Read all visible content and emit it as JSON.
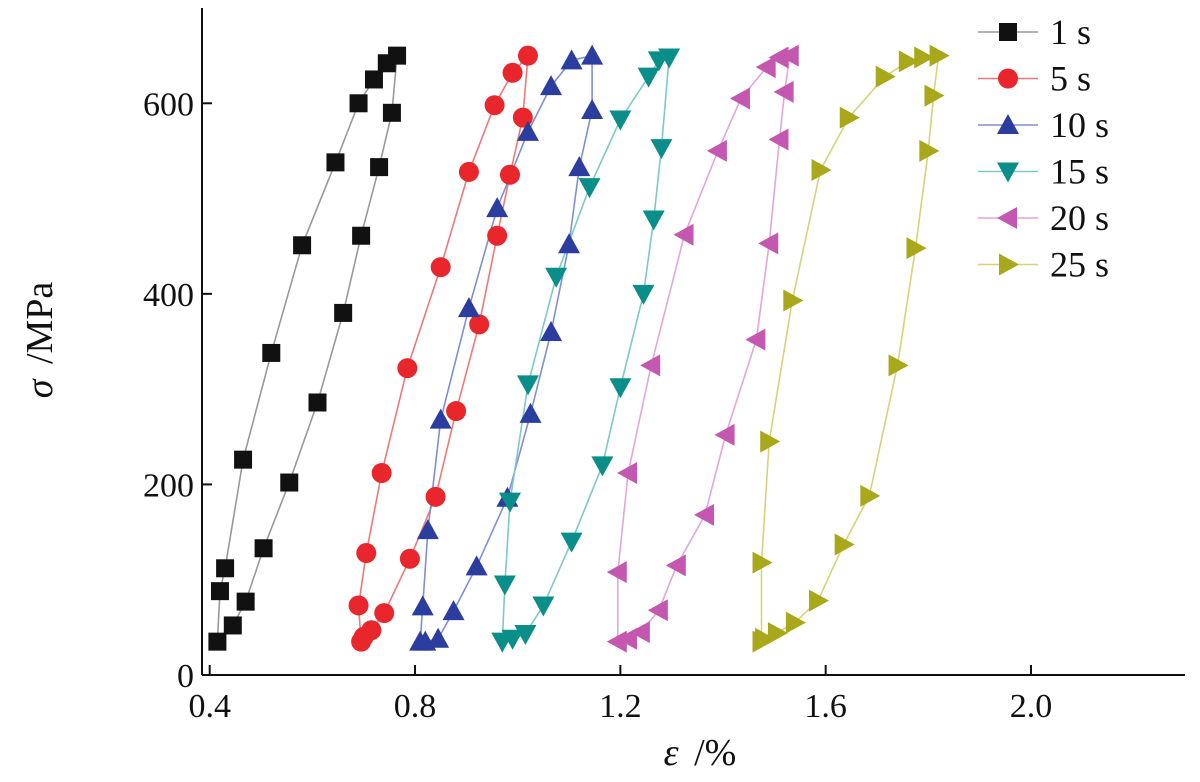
{
  "chart_data": {
    "type": "line",
    "title": "",
    "xlabel_symbol": "ε",
    "xlabel_unit": "/%",
    "ylabel_symbol": "σ",
    "ylabel_unit": "/MPa",
    "xlim": [
      0.385,
      2.3
    ],
    "ylim": [
      0,
      700
    ],
    "xticks": [
      0.4,
      0.8,
      1.2,
      1.6,
      2.0
    ],
    "xtick_labels": [
      "0.4",
      "0.8",
      "1.2",
      "1.6",
      "2.0"
    ],
    "yticks": [
      0,
      200,
      400,
      600
    ],
    "ytick_labels": [
      "0",
      "200",
      "400",
      "600"
    ],
    "grid": false,
    "legend_position": "top-right",
    "series": [
      {
        "name": "1 s",
        "marker": "square",
        "color": "#111111",
        "line_color": "#999999",
        "points": [
          [
            0.415,
            35
          ],
          [
            0.42,
            88
          ],
          [
            0.43,
            112
          ],
          [
            0.465,
            226
          ],
          [
            0.52,
            338
          ],
          [
            0.58,
            451
          ],
          [
            0.645,
            538
          ],
          [
            0.69,
            600
          ],
          [
            0.72,
            625
          ],
          [
            0.745,
            642
          ],
          [
            0.765,
            650
          ],
          [
            0.755,
            590
          ],
          [
            0.73,
            533
          ],
          [
            0.695,
            461
          ],
          [
            0.66,
            380
          ],
          [
            0.61,
            286
          ],
          [
            0.555,
            202
          ],
          [
            0.505,
            133
          ],
          [
            0.47,
            77
          ],
          [
            0.445,
            52
          ],
          [
            0.415,
            35
          ]
        ]
      },
      {
        "name": "5 s",
        "marker": "circle",
        "color": "#e8262b",
        "line_color": "#f07878",
        "points": [
          [
            0.695,
            35
          ],
          [
            0.69,
            73
          ],
          [
            0.705,
            128
          ],
          [
            0.735,
            212
          ],
          [
            0.785,
            322
          ],
          [
            0.85,
            428
          ],
          [
            0.905,
            528
          ],
          [
            0.955,
            598
          ],
          [
            0.99,
            632
          ],
          [
            1.02,
            650
          ],
          [
            1.01,
            585
          ],
          [
            0.985,
            525
          ],
          [
            0.96,
            461
          ],
          [
            0.925,
            368
          ],
          [
            0.88,
            277
          ],
          [
            0.84,
            187
          ],
          [
            0.79,
            122
          ],
          [
            0.74,
            65
          ],
          [
            0.715,
            47
          ],
          [
            0.7,
            40
          ],
          [
            0.695,
            35
          ]
        ]
      },
      {
        "name": "10 s",
        "marker": "triangle-up",
        "color": "#2b3d9e",
        "line_color": "#7f8fd4",
        "points": [
          [
            0.81,
            35
          ],
          [
            0.815,
            72
          ],
          [
            0.825,
            152
          ],
          [
            0.85,
            268
          ],
          [
            0.905,
            385
          ],
          [
            0.96,
            490
          ],
          [
            1.02,
            570
          ],
          [
            1.065,
            618
          ],
          [
            1.105,
            645
          ],
          [
            1.145,
            650
          ],
          [
            1.145,
            593
          ],
          [
            1.12,
            533
          ],
          [
            1.1,
            452
          ],
          [
            1.065,
            360
          ],
          [
            1.025,
            274
          ],
          [
            0.98,
            186
          ],
          [
            0.92,
            114
          ],
          [
            0.875,
            67
          ],
          [
            0.845,
            38
          ],
          [
            0.82,
            35
          ],
          [
            0.81,
            35
          ]
        ]
      },
      {
        "name": "15 s",
        "marker": "triangle-down",
        "color": "#0a8e8a",
        "line_color": "#7cc9c6",
        "points": [
          [
            0.97,
            35
          ],
          [
            0.975,
            95
          ],
          [
            0.985,
            182
          ],
          [
            1.02,
            305
          ],
          [
            1.075,
            418
          ],
          [
            1.14,
            512
          ],
          [
            1.2,
            583
          ],
          [
            1.255,
            628
          ],
          [
            1.275,
            645
          ],
          [
            1.295,
            648
          ],
          [
            1.28,
            553
          ],
          [
            1.265,
            478
          ],
          [
            1.245,
            400
          ],
          [
            1.2,
            302
          ],
          [
            1.165,
            220
          ],
          [
            1.105,
            140
          ],
          [
            1.05,
            73
          ],
          [
            1.015,
            43
          ],
          [
            0.99,
            38
          ],
          [
            0.97,
            35
          ]
        ]
      },
      {
        "name": "20 s",
        "marker": "triangle-left",
        "color": "#c458b0",
        "line_color": "#e4a6da",
        "points": [
          [
            1.195,
            35
          ],
          [
            1.195,
            108
          ],
          [
            1.215,
            212
          ],
          [
            1.26,
            325
          ],
          [
            1.325,
            462
          ],
          [
            1.39,
            550
          ],
          [
            1.435,
            605
          ],
          [
            1.485,
            638
          ],
          [
            1.51,
            648
          ],
          [
            1.53,
            650
          ],
          [
            1.52,
            612
          ],
          [
            1.51,
            562
          ],
          [
            1.49,
            453
          ],
          [
            1.465,
            352
          ],
          [
            1.405,
            252
          ],
          [
            1.365,
            168
          ],
          [
            1.31,
            115
          ],
          [
            1.275,
            68
          ],
          [
            1.24,
            45
          ],
          [
            1.215,
            38
          ],
          [
            1.195,
            35
          ]
        ]
      },
      {
        "name": "25 s",
        "marker": "triangle-right",
        "color": "#a8a81a",
        "line_color": "#d4d47a",
        "points": [
          [
            1.475,
            35
          ],
          [
            1.475,
            118
          ],
          [
            1.49,
            245
          ],
          [
            1.535,
            393
          ],
          [
            1.59,
            530
          ],
          [
            1.645,
            585
          ],
          [
            1.715,
            628
          ],
          [
            1.76,
            644
          ],
          [
            1.79,
            648
          ],
          [
            1.82,
            650
          ],
          [
            1.81,
            608
          ],
          [
            1.8,
            550
          ],
          [
            1.775,
            448
          ],
          [
            1.74,
            325
          ],
          [
            1.685,
            188
          ],
          [
            1.635,
            137
          ],
          [
            1.585,
            78
          ],
          [
            1.54,
            55
          ],
          [
            1.505,
            44
          ],
          [
            1.48,
            38
          ],
          [
            1.475,
            35
          ]
        ]
      }
    ]
  }
}
